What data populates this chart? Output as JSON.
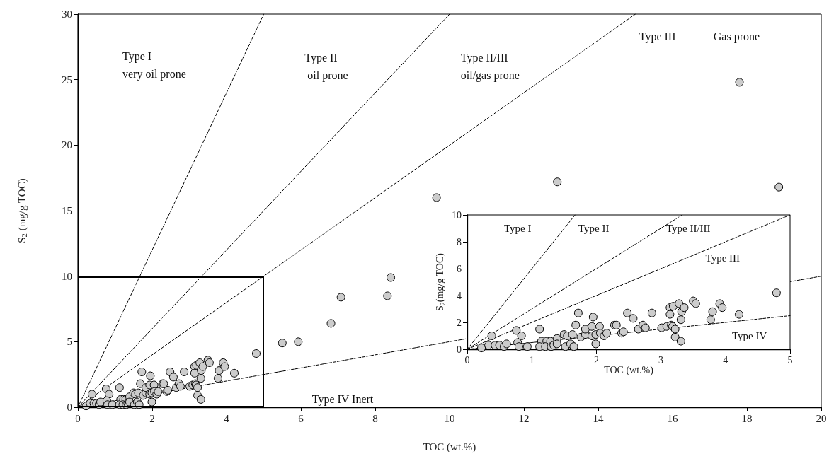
{
  "chart_data": [
    {
      "type": "scatter",
      "xlabel": "TOC (wt.%)",
      "ylabel": "S$_{2}$ (mg/g TOC)",
      "xlim": [
        0,
        20
      ],
      "ylim": [
        0,
        30
      ],
      "xticks": [
        0,
        2,
        4,
        6,
        8,
        10,
        12,
        14,
        16,
        18,
        20
      ],
      "yticks": [
        0,
        5,
        10,
        15,
        20,
        25,
        30
      ],
      "marker": "circle",
      "annotations": [
        "Type I\nvery oil prone",
        "Type II\n oil prone",
        "Type II/III\noil/gas prone",
        "Type III",
        "Gas prone",
        "Type IV Inert"
      ],
      "series": [
        {
          "type": "line",
          "color": "#000000",
          "line_style": "dashed",
          "marker": "none",
          "x": [
            0,
            5
          ],
          "values": [
            0,
            30
          ]
        },
        {
          "type": "line",
          "color": "#000000",
          "line_style": "dashed",
          "marker": "none",
          "x": [
            0,
            10
          ],
          "values": [
            0,
            30
          ]
        },
        {
          "type": "line",
          "color": "#000000",
          "line_style": "dashed",
          "marker": "none",
          "x": [
            0,
            15
          ],
          "values": [
            0,
            30
          ]
        },
        {
          "type": "line",
          "color": "#000000",
          "line_style": "dashed",
          "marker": "none",
          "x": [
            0,
            20
          ],
          "values": [
            0,
            10
          ]
        },
        {
          "color": "#cccccc",
          "x": [
            0.38,
            0.22,
            0.33,
            0.43,
            0.5,
            0.57,
            0.61,
            0.76,
            0.84,
            0.78,
            0.8,
            0.93,
            1.12,
            1.15,
            1.12,
            1.23,
            1.29,
            1.21,
            1.3,
            1.34,
            1.39,
            1.39,
            1.52,
            1.5,
            1.55,
            1.6,
            1.65,
            1.63,
            1.72,
            1.68,
            1.76,
            1.83,
            1.83,
            1.93,
            1.95,
            1.93,
            1.99,
            1.99,
            2.05,
            2.06,
            2.12,
            2.16,
            2.28,
            2.31,
            2.39,
            2.42,
            2.48,
            2.57,
            2.65,
            2.72,
            2.76,
            2.86,
            3.01,
            3.09,
            3.16,
            3.18,
            3.22,
            3.22,
            3.31,
            3.14,
            3.14,
            3.19,
            3.28,
            3.32,
            3.36,
            3.31,
            3.5,
            3.54,
            3.77,
            3.8,
            3.91,
            3.95,
            4.21,
            4.8,
            5.5,
            5.93,
            6.81,
            7.08,
            8.33,
            8.42,
            9.65,
            12.9,
            17.8,
            18.86
          ],
          "values": [
            1.0,
            0.1,
            0.3,
            0.3,
            0.3,
            0.2,
            0.4,
            1.4,
            1.0,
            0.5,
            0.2,
            0.2,
            1.5,
            0.6,
            0.2,
            0.6,
            0.6,
            0.2,
            0.2,
            0.3,
            0.8,
            0.4,
            0.2,
            1.1,
            1.0,
            0.4,
            0.2,
            1.1,
            2.7,
            1.8,
            0.9,
            1.1,
            1.5,
            1.7,
            2.4,
            1.0,
            0.4,
            1.1,
            1.7,
            1.2,
            1.0,
            1.2,
            1.8,
            1.8,
            1.2,
            1.3,
            2.7,
            2.3,
            1.5,
            1.8,
            1.6,
            2.7,
            1.6,
            1.7,
            1.8,
            1.7,
            1.5,
            0.9,
            0.6,
            3.1,
            2.6,
            3.2,
            3.4,
            2.8,
            3.1,
            2.2,
            3.6,
            3.4,
            2.2,
            2.8,
            3.4,
            3.1,
            2.6,
            4.1,
            4.9,
            5.0,
            6.4,
            8.4,
            8.5,
            9.9,
            16.0,
            17.2,
            24.8,
            16.8
          ]
        }
      ]
    },
    {
      "type": "scatter",
      "xlabel": "TOC (wt.%)",
      "ylabel": "S$_{2}$(mg/g TOC)",
      "xlim": [
        0,
        5
      ],
      "ylim": [
        0,
        10
      ],
      "xticks": [
        0,
        1,
        2,
        3,
        4,
        5
      ],
      "yticks": [
        0,
        2,
        4,
        6,
        8,
        10
      ],
      "marker": "circle",
      "annotations": [
        "Type I",
        "Type II",
        "Type II/III",
        "Type III",
        "Type IV"
      ],
      "series": [
        {
          "type": "line",
          "color": "#000000",
          "line_style": "dashed",
          "marker": "none",
          "x": [
            0,
            1.67
          ],
          "values": [
            0,
            10
          ]
        },
        {
          "type": "line",
          "color": "#000000",
          "line_style": "dashed",
          "marker": "none",
          "x": [
            0,
            3.33
          ],
          "values": [
            0,
            10
          ]
        },
        {
          "type": "line",
          "color": "#000000",
          "line_style": "dashed",
          "marker": "none",
          "x": [
            0,
            5
          ],
          "values": [
            0,
            10
          ]
        },
        {
          "type": "line",
          "color": "#000000",
          "line_style": "dashed",
          "marker": "none",
          "x": [
            0,
            5
          ],
          "values": [
            0,
            2.5
          ]
        },
        {
          "color": "#cccccc",
          "x": [
            0.38,
            0.22,
            0.33,
            0.43,
            0.5,
            0.57,
            0.61,
            0.76,
            0.84,
            0.78,
            0.8,
            0.93,
            1.12,
            1.15,
            1.12,
            1.23,
            1.29,
            1.21,
            1.3,
            1.34,
            1.39,
            1.39,
            1.52,
            1.5,
            1.55,
            1.6,
            1.65,
            1.63,
            1.72,
            1.68,
            1.76,
            1.83,
            1.83,
            1.93,
            1.95,
            1.93,
            1.99,
            1.99,
            2.05,
            2.06,
            2.12,
            2.16,
            2.28,
            2.31,
            2.39,
            2.42,
            2.48,
            2.57,
            2.65,
            2.72,
            2.76,
            2.86,
            3.01,
            3.09,
            3.16,
            3.18,
            3.22,
            3.22,
            3.31,
            3.14,
            3.14,
            3.19,
            3.28,
            3.32,
            3.36,
            3.31,
            3.5,
            3.54,
            3.77,
            3.8,
            3.91,
            3.95,
            4.21,
            4.79
          ],
          "values": [
            1.0,
            0.1,
            0.3,
            0.3,
            0.3,
            0.2,
            0.4,
            1.4,
            1.0,
            0.5,
            0.2,
            0.2,
            1.5,
            0.6,
            0.2,
            0.6,
            0.6,
            0.2,
            0.2,
            0.3,
            0.8,
            0.4,
            0.2,
            1.1,
            1.0,
            0.4,
            0.2,
            1.1,
            2.7,
            1.8,
            0.9,
            1.1,
            1.5,
            1.7,
            2.4,
            1.0,
            0.4,
            1.1,
            1.7,
            1.2,
            1.0,
            1.2,
            1.8,
            1.8,
            1.2,
            1.3,
            2.7,
            2.3,
            1.5,
            1.8,
            1.6,
            2.7,
            1.6,
            1.7,
            1.8,
            1.7,
            1.5,
            0.9,
            0.6,
            3.1,
            2.6,
            3.2,
            3.4,
            2.8,
            3.1,
            2.2,
            3.6,
            3.4,
            2.2,
            2.8,
            3.4,
            3.1,
            2.6,
            4.2
          ]
        }
      ]
    }
  ]
}
